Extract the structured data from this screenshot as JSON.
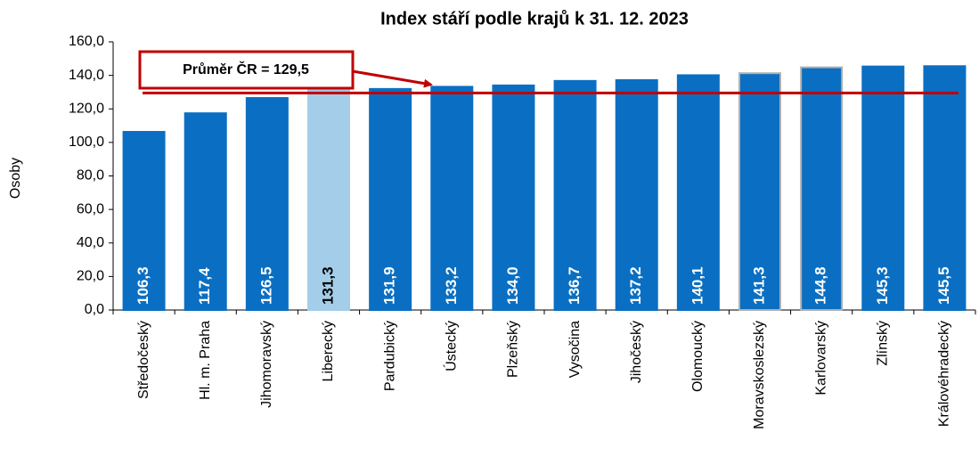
{
  "chart_data": {
    "type": "bar",
    "title": "Index stáří podle krajů k 31. 12. 2023",
    "ylabel": "Osoby",
    "categories": [
      "Středočeský",
      "Hl. m. Praha",
      "Jihomoravský",
      "Liberecký",
      "Pardubický",
      "Ústecký",
      "Plzeňský",
      "Vysočina",
      "Jihočeský",
      "Olomoucký",
      "Moravskoslezský",
      "Karlovarský",
      "Zlínský",
      "Královéhradecký"
    ],
    "values": [
      106.3,
      117.4,
      126.5,
      131.3,
      131.9,
      133.2,
      134.0,
      136.7,
      137.2,
      140.1,
      141.3,
      144.8,
      145.3,
      145.5
    ],
    "value_labels": [
      "106,3",
      "117,4",
      "126,5",
      "131,3",
      "131,9",
      "133,2",
      "134,0",
      "136,7",
      "137,2",
      "140,1",
      "141,3",
      "144,8",
      "145,3",
      "145,5"
    ],
    "colors": [
      "#0a6fc2",
      "#0a6fc2",
      "#0a6fc2",
      "#a3cde9",
      "#0a6fc2",
      "#0a6fc2",
      "#0a6fc2",
      "#0a6fc2",
      "#0a6fc2",
      "#0a6fc2",
      "#0a6fc2",
      "#0a6fc2",
      "#0a6fc2",
      "#0a6fc2"
    ],
    "edge_colors": [
      "#0a6fc2",
      "#0a6fc2",
      "#0a6fc2",
      "#a3cde9",
      "#0a6fc2",
      "#0a6fc2",
      "#0a6fc2",
      "#0a6fc2",
      "#0a6fc2",
      "#0a6fc2",
      "#b0b0b0",
      "#b0b0b0",
      "#0a6fc2",
      "#0a6fc2"
    ],
    "label_colors": [
      "#ffffff",
      "#ffffff",
      "#ffffff",
      "#000000",
      "#ffffff",
      "#ffffff",
      "#ffffff",
      "#ffffff",
      "#ffffff",
      "#ffffff",
      "#ffffff",
      "#ffffff",
      "#ffffff",
      "#ffffff"
    ],
    "average": 129.5,
    "average_color": "#c00000",
    "annotation": "Průměr ČR = 129,5",
    "ylim": [
      0,
      160
    ],
    "yticks": [
      {
        "value": 0,
        "label": "0,0"
      },
      {
        "value": 20,
        "label": "20,0"
      },
      {
        "value": 40,
        "label": "40,0"
      },
      {
        "value": 60,
        "label": "60,0"
      },
      {
        "value": 80,
        "label": "80,0"
      },
      {
        "value": 100,
        "label": "100,0"
      },
      {
        "value": 120,
        "label": "120,0"
      },
      {
        "value": 140,
        "label": "140,0"
      },
      {
        "value": 160,
        "label": "160,0"
      }
    ],
    "grid": false
  }
}
